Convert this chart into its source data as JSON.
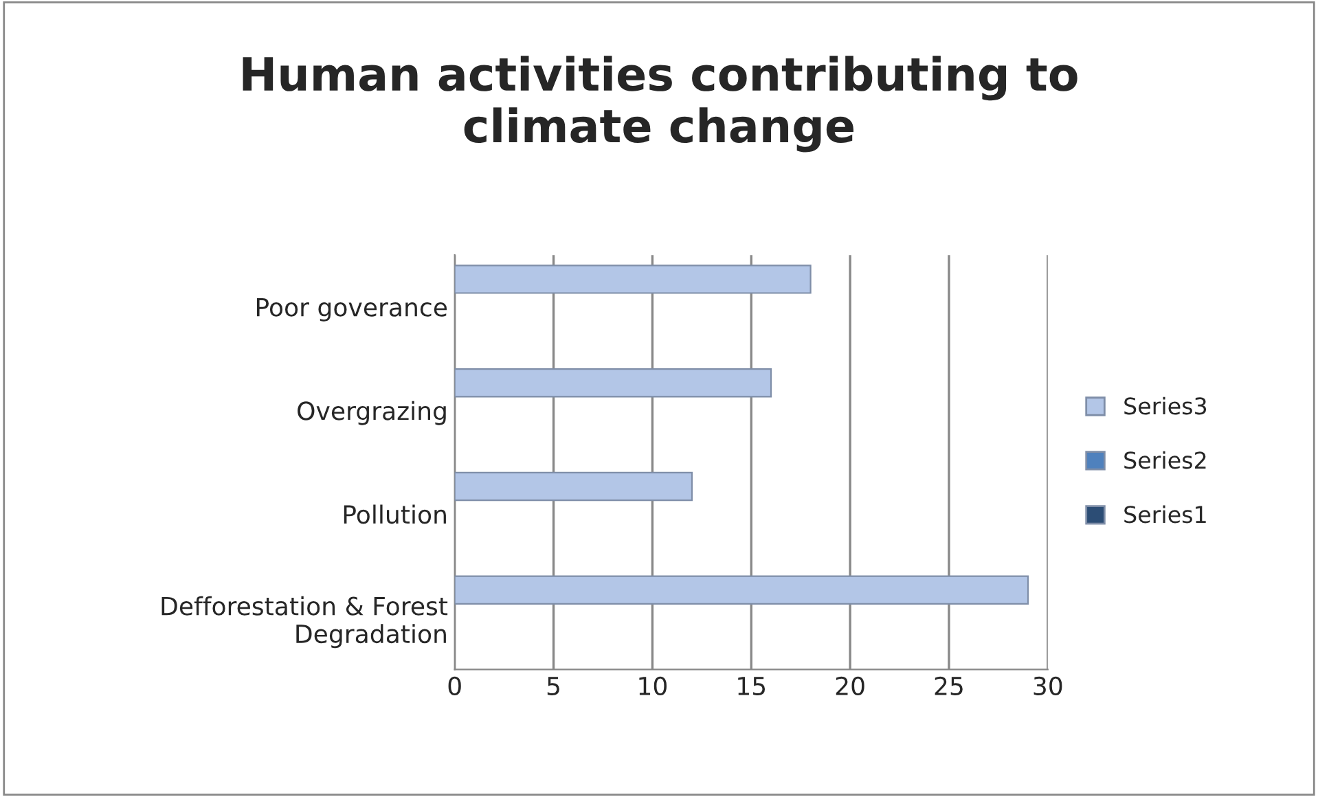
{
  "chart_data": {
    "type": "bar",
    "orientation": "horizontal",
    "title": "Human activities contributing to\nclimate change",
    "categories": [
      "Poor goverance",
      "Overgrazing",
      "Pollution",
      "Defforestation & Forest\nDegradation"
    ],
    "series": [
      {
        "name": "Series1",
        "color": "#2c4d75",
        "values": [
          null,
          null,
          null,
          null
        ]
      },
      {
        "name": "Series2",
        "color": "#4f81bd",
        "values": [
          null,
          null,
          null,
          null
        ]
      },
      {
        "name": "Series3",
        "color": "#b3c6e7",
        "values": [
          18,
          16,
          12,
          29
        ]
      }
    ],
    "xlim": [
      0,
      30
    ],
    "xticks": [
      0,
      5,
      10,
      15,
      20,
      25,
      30
    ],
    "grid": "x",
    "legend": "right"
  }
}
